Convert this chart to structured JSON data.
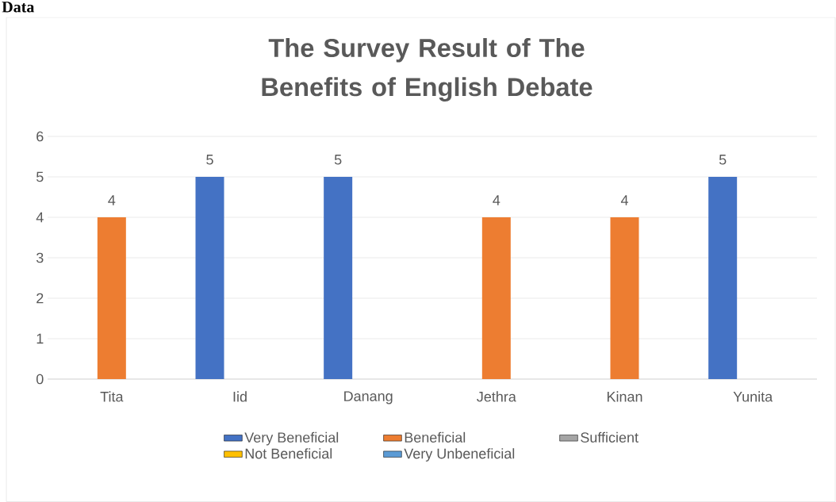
{
  "chart_data": {
    "type": "bar",
    "title": "The Survey Result of The Benefits of English Debate",
    "categories": [
      "Tita",
      "Iid",
      "Danang",
      "Jethra",
      "Kinan",
      "Yunita"
    ],
    "series": [
      {
        "name": "Very Beneficial",
        "color": "#4472c4",
        "values": [
          0,
          5,
          5,
          0,
          0,
          5
        ],
        "value_labels": [
          null,
          "5",
          "5",
          null,
          null,
          "5"
        ]
      },
      {
        "name": "Beneficial",
        "color": "#ed7d31",
        "values": [
          4,
          0,
          0,
          4,
          4,
          0
        ],
        "value_labels": [
          "4",
          null,
          null,
          "4",
          "4",
          null
        ]
      },
      {
        "name": "Sufficient",
        "color": "#a5a5a5",
        "values": [
          0,
          0,
          0,
          0,
          0,
          0
        ]
      },
      {
        "name": "Not Beneficial",
        "color": "#ffc000",
        "values": [
          null,
          null,
          null,
          null,
          null,
          null
        ]
      },
      {
        "name": "Very Unbeneficial",
        "color": "#5b9bd5",
        "values": [
          null,
          null,
          null,
          null,
          null,
          null
        ]
      }
    ],
    "ylim": [
      0,
      6
    ],
    "yticks": [
      0,
      1,
      2,
      3,
      4,
      5,
      6
    ],
    "grid": "y",
    "legend": "bottom",
    "annotations": [
      "Data"
    ]
  }
}
